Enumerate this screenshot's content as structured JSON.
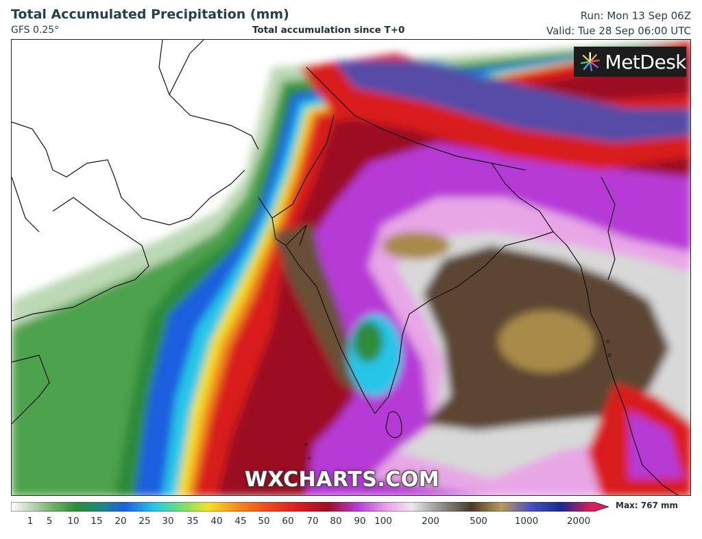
{
  "header": {
    "title": "Total Accumulated Precipitation (mm)",
    "model": "GFS 0.25°",
    "subtitle": "Total accumulation since T+0",
    "run": "Run: Mon 13 Sep 06Z",
    "valid": "Valid: Tue 28 Sep 06:00 UTC"
  },
  "logo": {
    "text": "MetDesk",
    "icon": "metdesk-burst-icon"
  },
  "watermark": "WXCHARTS.COM",
  "legend": {
    "max_label": "Max: 767 mm",
    "ticks": [
      "1",
      "5",
      "10",
      "15",
      "20",
      "25",
      "30",
      "35",
      "40",
      "45",
      "50",
      "60",
      "70",
      "80",
      "90",
      "100",
      "200",
      "500",
      "1000",
      "2000"
    ],
    "colors": {
      "dry": "#ffffff",
      "light": "#a8c8a0",
      "green": "#2e8b3a",
      "blue": "#1f5fe0",
      "cyan": "#27c6e8",
      "yellow": "#f2e02a",
      "orange": "#f28a1e",
      "red": "#d91e1e",
      "darkred": "#9c0f24",
      "magenta": "#b63bd6",
      "pink": "#e8a6e6",
      "grey": "#d8d8d8",
      "brown": "#5c4532",
      "tan": "#a88a4a"
    }
  }
}
